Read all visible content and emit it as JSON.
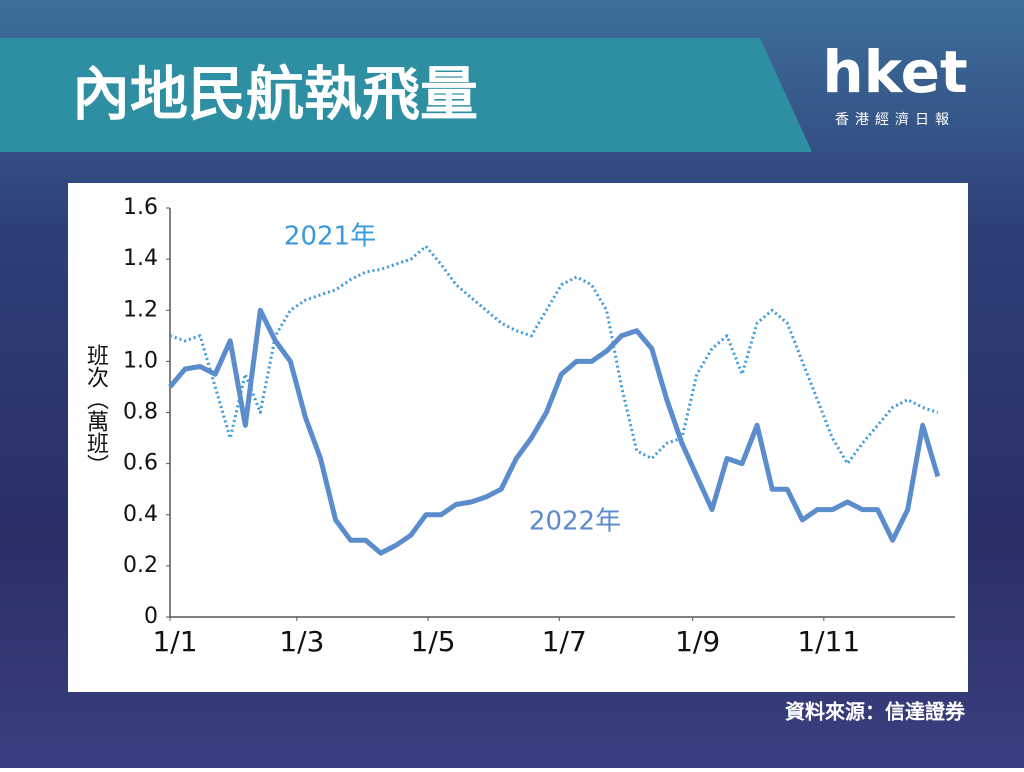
{
  "header": {
    "logo": "hket",
    "logo_sub": "香港經濟日報"
  },
  "source": "資料來源：信達證券",
  "chart_data": {
    "type": "line",
    "title": "內地民航執飛量",
    "y_label": "班次（萬班）",
    "annotations": [
      "2021年",
      "2022年"
    ],
    "x": [
      0,
      7,
      14,
      21,
      28,
      35,
      42,
      49,
      56,
      63,
      70,
      77,
      84,
      91,
      98,
      105,
      112,
      119,
      126,
      133,
      140,
      147,
      154,
      161,
      168,
      175,
      182,
      189,
      196,
      203,
      210,
      217,
      224,
      231,
      238,
      245,
      252,
      259,
      266,
      273,
      280,
      287,
      294,
      301,
      308,
      315,
      322,
      329,
      336,
      343,
      350,
      357
    ],
    "series": [
      {
        "name": "2021年",
        "color": "#3a9ad9",
        "style": "dotted",
        "values": [
          1.1,
          1.08,
          1.1,
          0.9,
          0.7,
          0.95,
          0.8,
          1.1,
          1.2,
          1.24,
          1.26,
          1.28,
          1.32,
          1.35,
          1.36,
          1.38,
          1.4,
          1.45,
          1.38,
          1.3,
          1.25,
          1.2,
          1.15,
          1.12,
          1.1,
          1.2,
          1.3,
          1.33,
          1.3,
          1.2,
          0.9,
          0.65,
          0.62,
          0.68,
          0.7,
          0.95,
          1.05,
          1.1,
          0.95,
          1.15,
          1.2,
          1.15,
          1.0,
          0.85,
          0.7,
          0.6,
          0.68,
          0.75,
          0.82,
          0.85,
          0.82,
          0.8
        ]
      },
      {
        "name": "2022年",
        "color": "#5b8ccc",
        "style": "solid",
        "values": [
          0.9,
          0.97,
          0.98,
          0.95,
          1.08,
          0.75,
          1.2,
          1.08,
          1.0,
          0.78,
          0.62,
          0.38,
          0.3,
          0.3,
          0.25,
          0.28,
          0.32,
          0.4,
          0.4,
          0.44,
          0.45,
          0.47,
          0.5,
          0.62,
          0.7,
          0.8,
          0.95,
          1.0,
          1.0,
          1.04,
          1.1,
          1.12,
          1.05,
          0.85,
          0.68,
          0.55,
          0.42,
          0.62,
          0.6,
          0.75,
          0.5,
          0.5,
          0.38,
          0.42,
          0.42,
          0.45,
          0.42,
          0.42,
          0.3,
          0.42,
          0.75,
          0.55
        ]
      }
    ],
    "xlim": [
      0,
      365
    ],
    "xticks": [
      {
        "value": 0,
        "label": "1/1"
      },
      {
        "value": 59,
        "label": "1/3"
      },
      {
        "value": 120,
        "label": "1/5"
      },
      {
        "value": 181,
        "label": "1/7"
      },
      {
        "value": 243,
        "label": "1/9"
      },
      {
        "value": 304,
        "label": "1/11"
      }
    ],
    "ylim": [
      0,
      1.6
    ],
    "yticks": [
      0,
      0.2,
      0.4,
      0.6,
      0.8,
      {
        "value": 1,
        "label": "1.0"
      },
      1.2,
      1.4,
      1.6
    ]
  }
}
